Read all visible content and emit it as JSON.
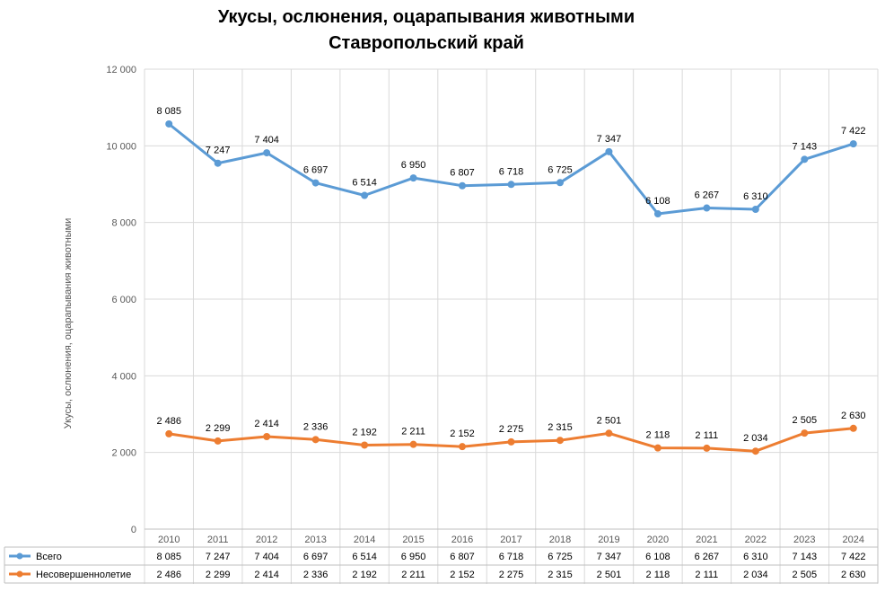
{
  "chart_data": {
    "type": "line",
    "title": "Укусы, ослюнения, оцарапывания животными",
    "subtitle": "Ставропольский край",
    "ylabel": "Укусы, ослюнения, оцарапывания животными",
    "xlabel": "",
    "ylim": [
      0,
      12000
    ],
    "yticks": [
      0,
      2000,
      4000,
      6000,
      8000,
      10000,
      12000
    ],
    "ytick_labels": [
      "0",
      "2 000",
      "4 000",
      "6 000",
      "8 000",
      "10 000",
      "12 000"
    ],
    "grid": true,
    "legend": "data-table",
    "categories": [
      "2010",
      "2011",
      "2012",
      "2013",
      "2014",
      "2015",
      "2016",
      "2017",
      "2018",
      "2019",
      "2020",
      "2021",
      "2022",
      "2023",
      "2024"
    ],
    "series": [
      {
        "name": "Всего",
        "color": "#5B9BD5",
        "plotted_values": [
          10571,
          9546,
          9818,
          9033,
          8706,
          9161,
          8959,
          8993,
          9040,
          9848,
          8226,
          8378,
          8344,
          9648,
          10052
        ],
        "labels": [
          "8 085",
          "7 247",
          "7 404",
          "6 697",
          "6 514",
          "6 950",
          "6 807",
          "6 718",
          "6 725",
          "7 347",
          "6 108",
          "6 267",
          "6 310",
          "7 143",
          "7 422"
        ]
      },
      {
        "name": "Несовершеннолетие",
        "color": "#ED7D31",
        "plotted_values": [
          2486,
          2299,
          2414,
          2336,
          2192,
          2211,
          2152,
          2275,
          2315,
          2501,
          2118,
          2111,
          2034,
          2505,
          2630
        ],
        "labels": [
          "2 486",
          "2 299",
          "2 414",
          "2 336",
          "2 192",
          "2 211",
          "2 152",
          "2 275",
          "2 315",
          "2 501",
          "2 118",
          "2 111",
          "2 034",
          "2 505",
          "2 630"
        ]
      }
    ]
  }
}
